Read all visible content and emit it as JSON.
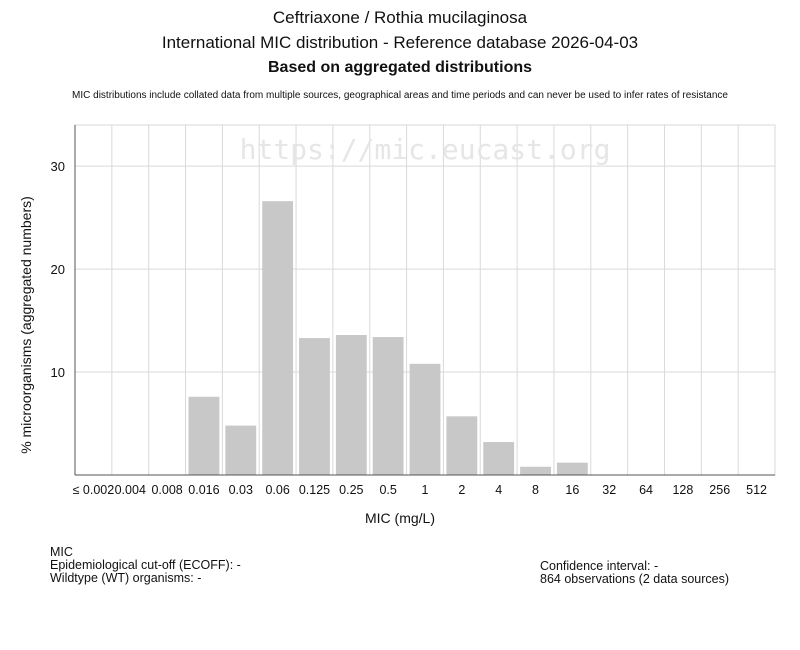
{
  "header": {
    "title": "Ceftriaxone / Rothia mucilaginosa",
    "subtitle": "International MIC distribution - Reference database 2026-04-03",
    "subtitle2": "Based on aggregated distributions",
    "disclaimer": "MIC distributions include collated data from multiple sources, geographical areas and time periods and can never be used to infer rates of resistance"
  },
  "watermark": "https://mic.eucast.org",
  "colors": {
    "bar": "#c8c8c8",
    "grid": "#d9d9d9",
    "axis": "#555555"
  },
  "chart_data": {
    "type": "bar",
    "categories": [
      "≤ 0.002",
      "0.004",
      "0.008",
      "0.016",
      "0.03",
      "0.06",
      "0.125",
      "0.25",
      "0.5",
      "1",
      "2",
      "4",
      "8",
      "16",
      "32",
      "64",
      "128",
      "256",
      "512"
    ],
    "values": [
      0,
      0,
      0,
      7.6,
      4.8,
      26.6,
      13.3,
      13.6,
      13.4,
      10.8,
      5.7,
      3.2,
      0.8,
      1.2,
      0,
      0,
      0,
      0,
      0
    ],
    "xlabel": "MIC (mg/L)",
    "ylabel": "% microorganisms (aggregated numbers)",
    "ylim": [
      0,
      34
    ],
    "yticks": [
      10,
      20,
      30
    ],
    "grid": true
  },
  "footer": {
    "mic_label": "MIC",
    "ecoff": "Epidemiological cut-off (ECOFF): -",
    "wildtype": "Wildtype (WT) organisms:  -",
    "confidence": "Confidence interval: -",
    "observations": "864 observations (2 data sources)"
  }
}
